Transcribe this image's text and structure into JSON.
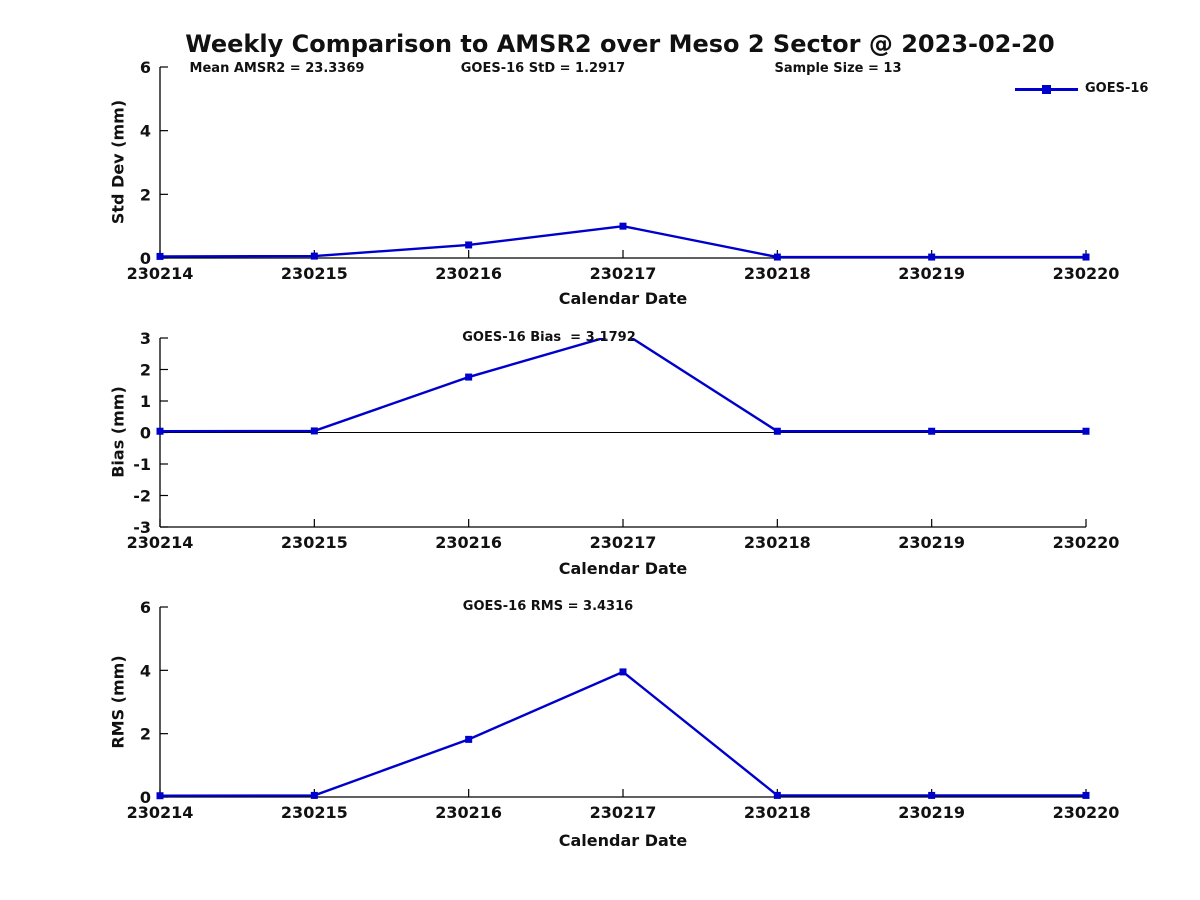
{
  "page_title": "Weekly Comparison to AMSR2 over Meso 2 Sector @ 2023-02-20",
  "stats_row": {
    "mean_amsr2": "Mean AMSR2 = 23.3369",
    "goes16_std": "GOES-16 StD = 1.2917",
    "sample_size": "Sample Size = 13"
  },
  "legend": {
    "label": "GOES-16"
  },
  "colors": {
    "series_line": "#0000cc",
    "axis": "#000000",
    "text": "#111111"
  },
  "chart_data": [
    {
      "type": "line",
      "id": "std-dev",
      "title": "",
      "annotation": "",
      "xlabel": "Calendar Date",
      "ylabel": "Std Dev (mm)",
      "ylim": [
        0,
        6
      ],
      "yticks": [
        0,
        2,
        4,
        6
      ],
      "grid": false,
      "legend_position": "top-right",
      "categories": [
        "230214",
        "230215",
        "230216",
        "230217",
        "230218",
        "230219",
        "230220"
      ],
      "series": [
        {
          "name": "GOES-16",
          "values": [
            0.05,
            0.06,
            0.41,
            1.0,
            0.03,
            0.03,
            0.03
          ]
        }
      ]
    },
    {
      "type": "line",
      "id": "bias",
      "title": "",
      "annotation": "GOES-16 Bias  = 3.1792",
      "xlabel": "Calendar Date",
      "ylabel": "Bias (mm)",
      "ylim": [
        -3,
        3
      ],
      "yticks": [
        -3,
        -2,
        -1,
        0,
        1,
        2,
        3
      ],
      "zero_line": true,
      "clipped_peak_note": "value 3.1792 at 230217 exceeds y-axis max 3 and is clipped",
      "grid": false,
      "categories": [
        "230214",
        "230215",
        "230216",
        "230217",
        "230218",
        "230219",
        "230220"
      ],
      "series": [
        {
          "name": "GOES-16",
          "values": [
            0.04,
            0.05,
            1.76,
            3.1792,
            0.04,
            0.04,
            0.04
          ]
        }
      ]
    },
    {
      "type": "line",
      "id": "rms",
      "title": "",
      "annotation": "GOES-16 RMS = 3.4316",
      "xlabel": "Calendar Date",
      "ylabel": "RMS (mm)",
      "ylim": [
        0,
        6
      ],
      "yticks": [
        0,
        2,
        4,
        6
      ],
      "grid": false,
      "categories": [
        "230214",
        "230215",
        "230216",
        "230217",
        "230218",
        "230219",
        "230220"
      ],
      "series": [
        {
          "name": "GOES-16",
          "values": [
            0.04,
            0.05,
            1.82,
            3.95,
            0.05,
            0.05,
            0.05
          ]
        }
      ]
    }
  ]
}
